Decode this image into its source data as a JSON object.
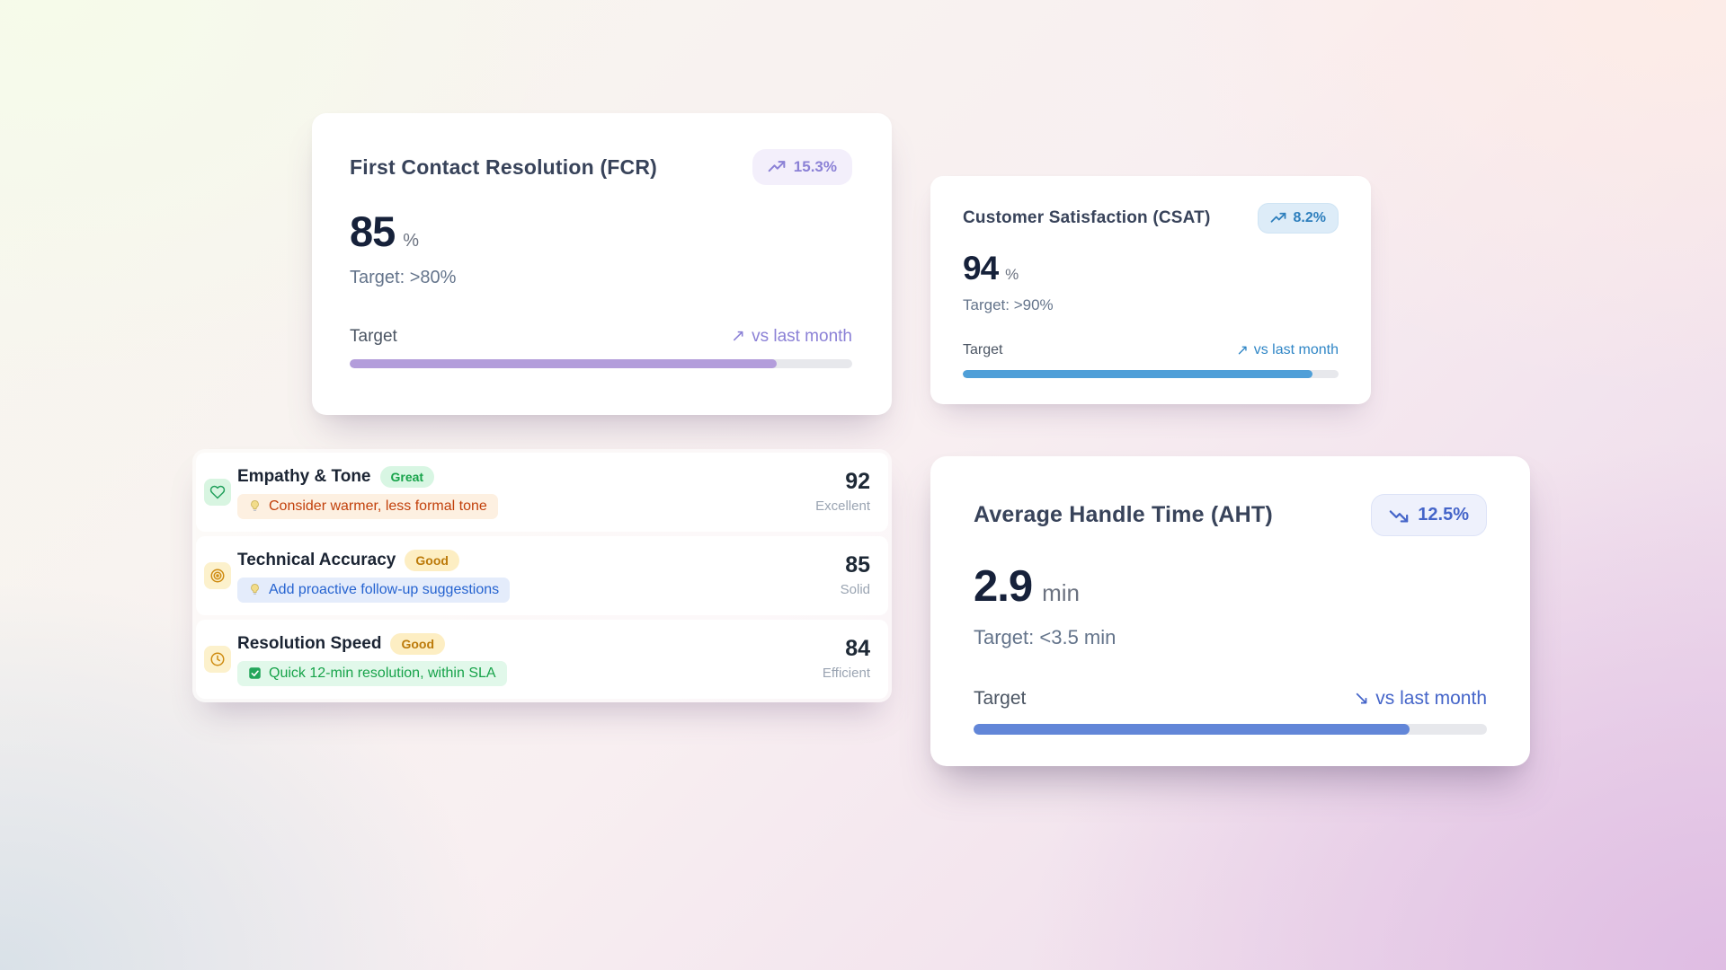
{
  "fcr": {
    "title": "First Contact Resolution (FCR)",
    "badge_value": "15.3%",
    "value": "85",
    "unit": "%",
    "target": "Target: >80%",
    "footer_label": "Target",
    "trend_arrow": "↗",
    "trend_text": "vs last month",
    "progress": "85%",
    "accent_color": "#8b81d6",
    "bar_color": "#b39ddb"
  },
  "csat": {
    "title": "Customer Satisfaction (CSAT)",
    "badge_value": "8.2%",
    "value": "94",
    "unit": "%",
    "target": "Target: >90%",
    "footer_label": "Target",
    "trend_arrow": "↗",
    "trend_text": "vs last month",
    "progress": "93%",
    "accent_color": "#2f86c6",
    "bar_color": "#4f9fd8"
  },
  "aht": {
    "title": "Average Handle Time (AHT)",
    "badge_value": "12.5%",
    "value": "2.9",
    "unit": "min",
    "target": "Target: <3.5 min",
    "footer_label": "Target",
    "trend_arrow": "↘",
    "trend_text": "vs last month",
    "progress": "85%",
    "accent_color": "#4565c9",
    "bar_color": "#6286d8"
  },
  "metrics": [
    {
      "icon": "heart",
      "title": "Empathy & Tone",
      "badge": "Great",
      "badge_tone": "green",
      "note_icon": "lightbulb",
      "note": "Consider warmer, less formal tone",
      "note_tone": "orange",
      "score": "92",
      "score_label": "Excellent"
    },
    {
      "icon": "target",
      "title": "Technical Accuracy",
      "badge": "Good",
      "badge_tone": "amber",
      "note_icon": "lightbulb",
      "note": "Add proactive follow-up suggestions",
      "note_tone": "blue",
      "score": "85",
      "score_label": "Solid"
    },
    {
      "icon": "clock",
      "title": "Resolution Speed",
      "badge": "Good",
      "badge_tone": "amber",
      "note_icon": "check",
      "note": "Quick 12-min resolution, within SLA",
      "note_tone": "green",
      "score": "84",
      "score_label": "Efficient"
    }
  ]
}
